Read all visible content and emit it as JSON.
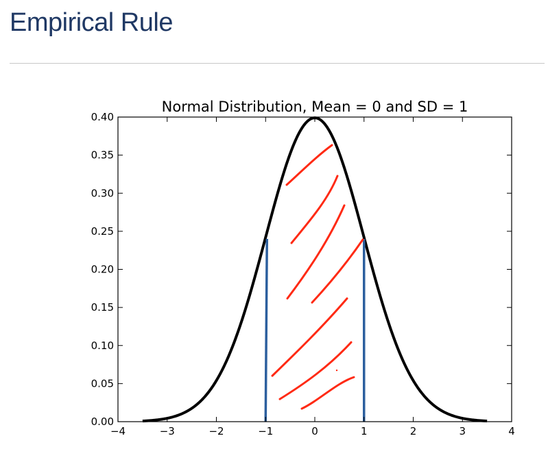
{
  "slide": {
    "title": "Empirical Rule"
  },
  "chart_data": {
    "type": "line",
    "title": "Normal Distribution, Mean = 0 and SD = 1",
    "xlabel": "",
    "ylabel": "",
    "xlim": [
      -4,
      4
    ],
    "ylim": [
      0,
      0.4
    ],
    "xticks": [
      -4,
      -3,
      -2,
      -1,
      0,
      1,
      2,
      3,
      4
    ],
    "xtick_labels": [
      "−4",
      "−3",
      "−2",
      "−1",
      "0",
      "1",
      "2",
      "3",
      "4"
    ],
    "yticks": [
      0,
      0.05,
      0.1,
      0.15,
      0.2,
      0.25,
      0.3,
      0.35,
      0.4
    ],
    "ytick_labels": [
      "0.00",
      "0.05",
      "0.10",
      "0.15",
      "0.20",
      "0.25",
      "0.30",
      "0.35",
      "0.40"
    ],
    "grid": false,
    "series": [
      {
        "kind": "normal-pdf",
        "mean": 0,
        "sd": 1,
        "x_range": [
          -3.5,
          3.5
        ],
        "color": "#000000"
      }
    ],
    "vertical_markers": [
      {
        "x": -1,
        "y_top": 0.24,
        "color": "#2c5f9e"
      },
      {
        "x": 1,
        "y_top": 0.24,
        "color": "#2c5f9e"
      }
    ],
    "annotations": {
      "hatch_strokes_color": "#ff2a14",
      "hatch_region": [
        -1,
        1
      ]
    }
  }
}
